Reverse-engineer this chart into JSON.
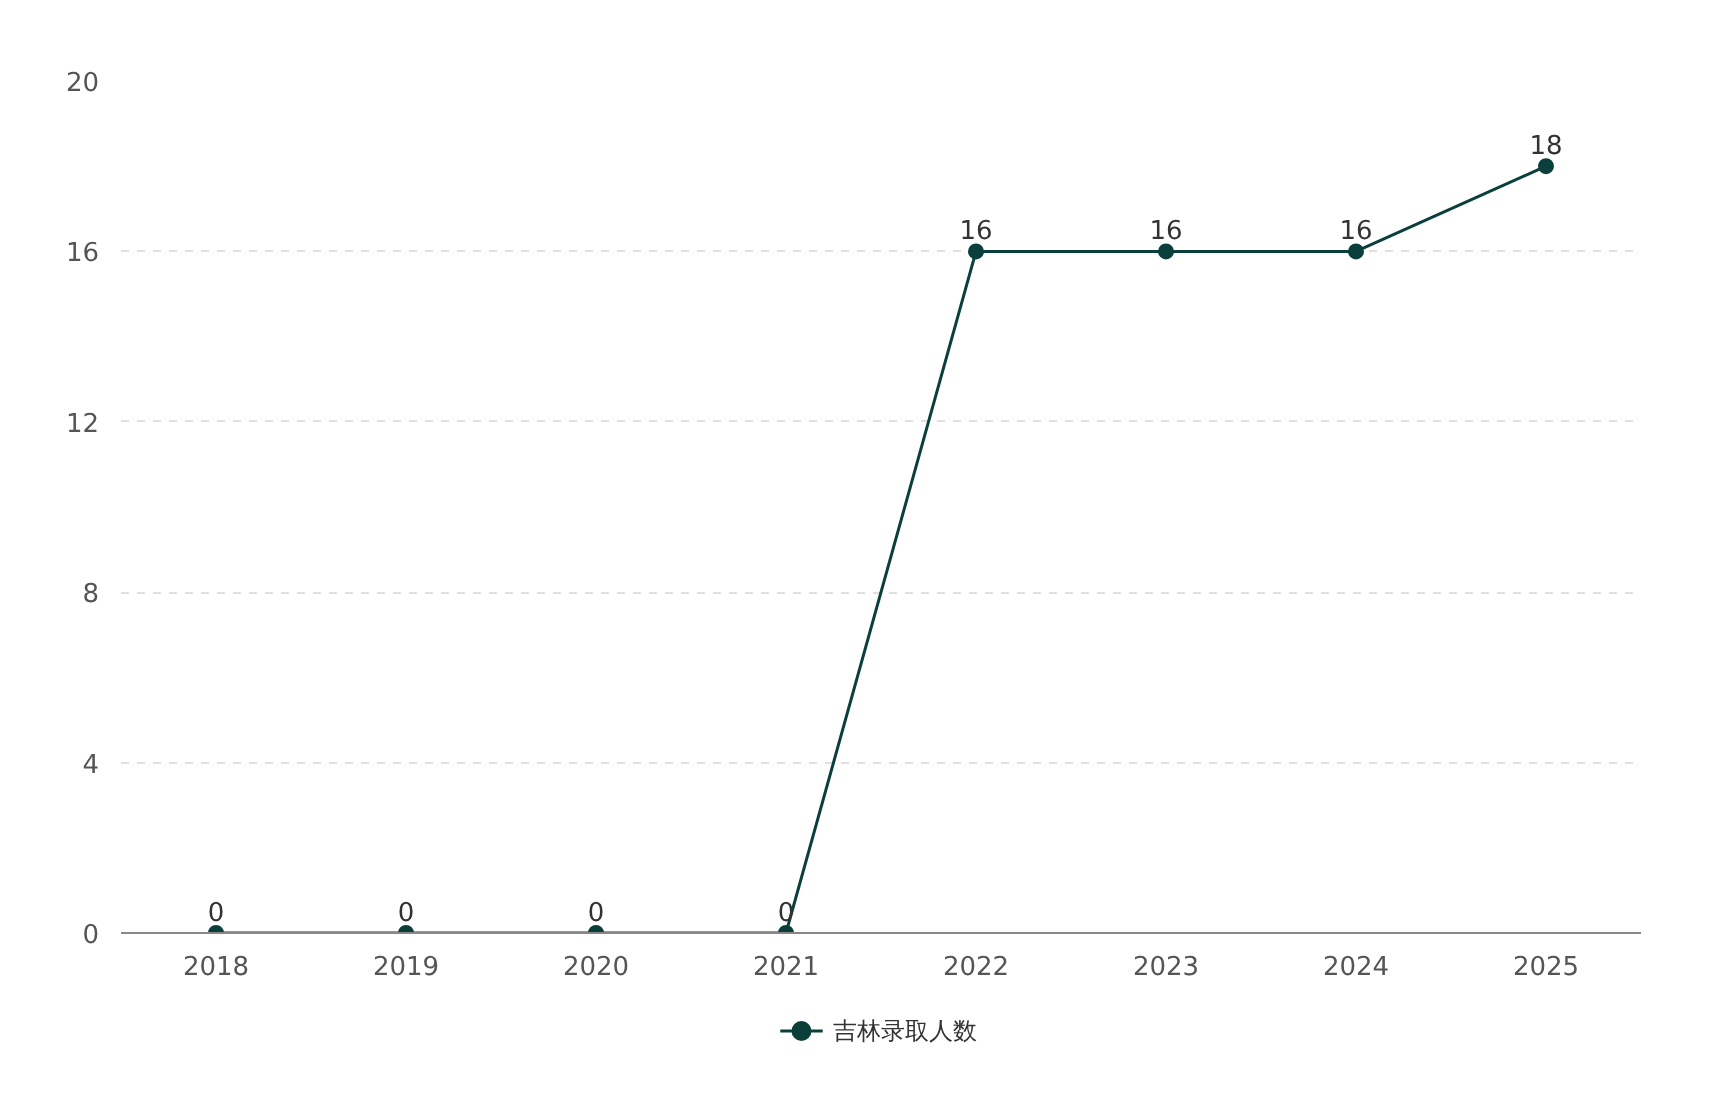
{
  "chart_data": {
    "type": "line",
    "categories": [
      "2018",
      "2019",
      "2020",
      "2021",
      "2022",
      "2023",
      "2024",
      "2025"
    ],
    "series": [
      {
        "name": "吉林录取人数",
        "color": "#0b3f3c",
        "values": [
          0,
          0,
          0,
          0,
          16,
          16,
          16,
          18
        ]
      }
    ],
    "ylim": [
      0,
      20
    ],
    "yticks": [
      0,
      4,
      8,
      12,
      16,
      20
    ],
    "grid": "y",
    "legend": "bottom",
    "marker": "circle",
    "line_style": "solid",
    "data_labels": true
  }
}
